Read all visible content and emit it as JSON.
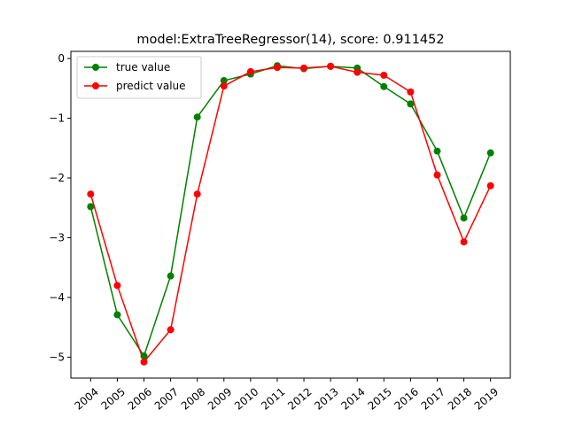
{
  "chart_data": {
    "type": "line",
    "title": "model:ExtraTreeRegressor(14), score: 0.911452",
    "xlabel": "",
    "ylabel": "",
    "categories": [
      "2004",
      "2005",
      "2006",
      "2007",
      "2008",
      "2009",
      "2010",
      "2011",
      "2012",
      "2013",
      "2014",
      "2015",
      "2016",
      "2017",
      "2018",
      "2019"
    ],
    "ylim": [
      -5.35,
      0.12
    ],
    "yticks": [
      0,
      -1,
      -2,
      -3,
      -4,
      -5
    ],
    "ytick_labels": [
      "0",
      "−1",
      "−2",
      "−3",
      "−4",
      "−5"
    ],
    "grid": false,
    "legend_position": "top-left",
    "series": [
      {
        "name": "true value",
        "color": "#008000",
        "values": [
          -2.48,
          -4.29,
          -4.98,
          -3.64,
          -0.98,
          -0.37,
          -0.26,
          -0.12,
          -0.17,
          -0.13,
          -0.16,
          -0.47,
          -0.76,
          -1.55,
          -2.67,
          -1.58
        ]
      },
      {
        "name": "predict value",
        "color": "#ff0000",
        "values": [
          -2.27,
          -3.8,
          -5.08,
          -4.54,
          -2.27,
          -0.46,
          -0.22,
          -0.15,
          -0.16,
          -0.13,
          -0.23,
          -0.28,
          -0.56,
          -1.95,
          -3.07,
          -2.13
        ]
      }
    ]
  }
}
